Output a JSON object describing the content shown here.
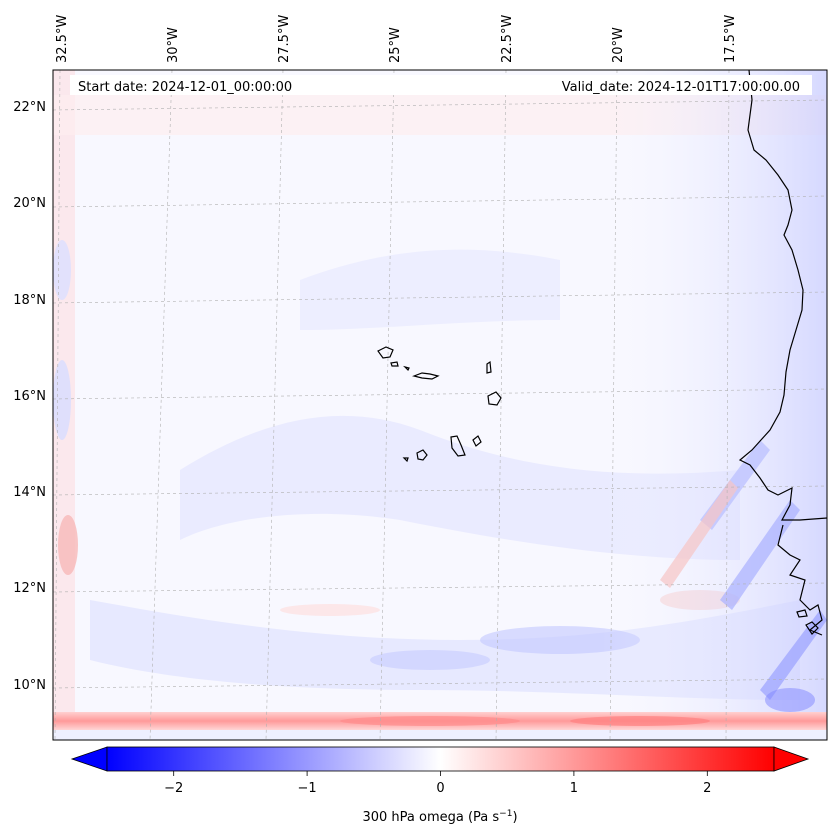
{
  "map": {
    "start_date_text": "Start date: 2024-12-01_00:00:00",
    "valid_date_text": "Valid_date: 2024-12-01T17:00:00.00",
    "lon_labels": [
      "32.5°W",
      "30°W",
      "27.5°W",
      "25°W",
      "22.5°W",
      "20°W",
      "17.5°W"
    ],
    "lat_labels": [
      "22°N",
      "20°N",
      "18°N",
      "16°N",
      "14°N",
      "12°N",
      "10°N"
    ],
    "gridlines": true,
    "background_color": "#f8f8ff"
  },
  "colorbar": {
    "ticks": [
      "−2",
      "−1",
      "0",
      "1",
      "2"
    ],
    "tick_values": [
      -2,
      -1,
      0,
      1,
      2
    ],
    "range": [
      -2.5,
      2.5
    ],
    "extend": "both",
    "colors": {
      "low": "#0000ff",
      "mid": "#ffffff",
      "high": "#ff0000"
    },
    "label_main": "300 hPa omega (Pa s",
    "label_sup": "−1",
    "label_end": ")"
  }
}
